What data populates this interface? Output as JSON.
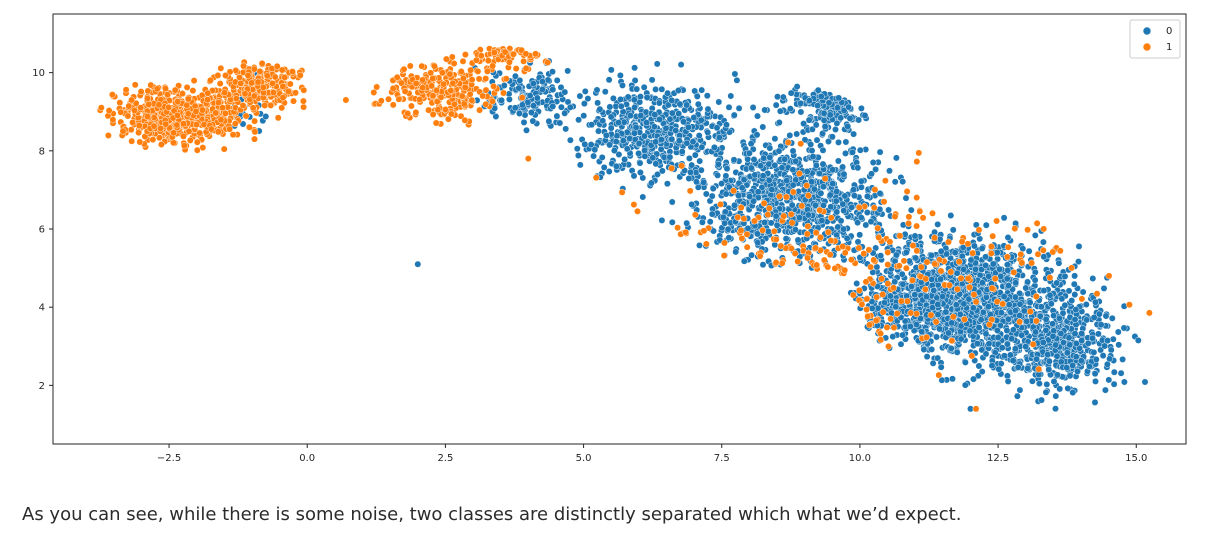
{
  "chart_data": {
    "type": "scatter",
    "xlim": [
      -4.6,
      15.9
    ],
    "ylim": [
      0.5,
      11.5
    ],
    "x_ticks": [
      -2.5,
      0.0,
      2.5,
      5.0,
      7.5,
      10.0,
      12.5,
      15.0
    ],
    "x_tick_labels": [
      "−2.5",
      "0.0",
      "2.5",
      "5.0",
      "7.5",
      "10.0",
      "12.5",
      "15.0"
    ],
    "y_ticks": [
      2,
      4,
      6,
      8,
      10
    ],
    "y_tick_labels": [
      "2",
      "4",
      "6",
      "8",
      "10"
    ],
    "grid": false,
    "legend": {
      "placement": "top-right",
      "entries": [
        "0",
        "1"
      ]
    },
    "series": [
      {
        "name": "0",
        "color": "#1f77b4",
        "clusters": [
          {
            "center": [
              11.8,
              4.2
            ],
            "spread": [
              1.6,
              1.3
            ],
            "count": 1400
          },
          {
            "center": [
              8.7,
              6.8
            ],
            "spread": [
              1.4,
              1.3
            ],
            "count": 900
          },
          {
            "center": [
              6.3,
              8.5
            ],
            "spread": [
              1.1,
              1.0
            ],
            "count": 500
          },
          {
            "center": [
              4.0,
              9.4
            ],
            "spread": [
              0.8,
              0.6
            ],
            "count": 150
          },
          {
            "center": [
              13.6,
              3.0
            ],
            "spread": [
              0.9,
              1.0
            ],
            "count": 450
          },
          {
            "center": [
              9.4,
              9.2
            ],
            "spread": [
              0.6,
              0.6
            ],
            "count": 150
          },
          {
            "center": [
              -1.2,
              9.0
            ],
            "spread": [
              0.5,
              0.5
            ],
            "count": 25
          }
        ],
        "points": [
          [
            2.0,
            5.1
          ],
          [
            12.1,
            1.4
          ],
          [
            12.0,
            1.4
          ]
        ]
      },
      {
        "name": "1",
        "color": "#ff7f0e",
        "clusters": [
          {
            "center": [
              -2.3,
              8.9
            ],
            "spread": [
              0.9,
              0.55
            ],
            "count": 650
          },
          {
            "center": [
              -0.9,
              9.7
            ],
            "spread": [
              0.6,
              0.45
            ],
            "count": 250
          },
          {
            "center": [
              2.4,
              9.5
            ],
            "spread": [
              0.9,
              0.6
            ],
            "count": 250
          },
          {
            "center": [
              3.6,
              10.4
            ],
            "spread": [
              0.7,
              0.3
            ],
            "count": 80
          },
          {
            "center": [
              9.5,
              5.0
            ],
            "spread": [
              4.0,
              2.0
            ],
            "count": 260
          }
        ],
        "points": [
          [
            12.1,
            1.4
          ],
          [
            0.7,
            9.3
          ],
          [
            4.0,
            7.8
          ]
        ]
      }
    ]
  },
  "caption": "As you can see, while there is some noise, two classes are distinctly separated which what we’d expect."
}
